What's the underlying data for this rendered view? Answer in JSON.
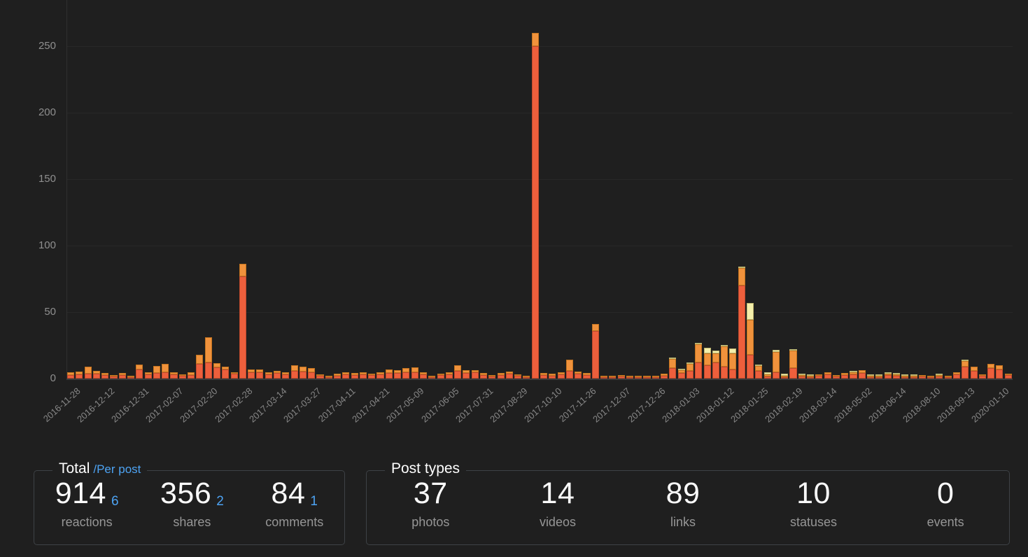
{
  "chart_data": {
    "type": "bar",
    "stacked": true,
    "title": "",
    "xlabel": "",
    "ylabel": "",
    "ylim": [
      0,
      260
    ],
    "yticks": [
      0,
      50,
      100,
      150,
      200,
      250
    ],
    "grid": true,
    "legend_position": "none",
    "x_tick_labels": [
      "2016-11-28",
      "2016-12-12",
      "2016-12-31",
      "2017-02-07",
      "2017-02-20",
      "2017-02-28",
      "2017-03-14",
      "2017-03-27",
      "2017-04-11",
      "2017-04-21",
      "2017-05-09",
      "2017-06-05",
      "2017-07-31",
      "2017-08-29",
      "2017-10-10",
      "2017-11-26",
      "2017-12-07",
      "2017-12-26",
      "2018-01-03",
      "2018-01-12",
      "2018-01-25",
      "2018-02-19",
      "2018-03-14",
      "2018-05-02",
      "2018-06-14",
      "2018-08-10",
      "2018-09-13",
      "2020-01-10"
    ],
    "label_every_n_bars": 4,
    "series": [
      {
        "name": "reactions",
        "color": "#ed5f3c",
        "border_color": "#c04a2e",
        "values": [
          2.5,
          3,
          3.5,
          3.5,
          2.5,
          1.5,
          2.5,
          1,
          7,
          3,
          4,
          5,
          3,
          2,
          2.5,
          11,
          12,
          8.5,
          7,
          3.5,
          77,
          5,
          4.5,
          3,
          4,
          3,
          6,
          5.5,
          5,
          2,
          1,
          2,
          3,
          2.5,
          3,
          2.5,
          3,
          4,
          4,
          4.5,
          4.5,
          3,
          1,
          2.5,
          3,
          6,
          4,
          4.5,
          2.5,
          1.5,
          2.5,
          3.5,
          2,
          1.2,
          250,
          2.5,
          2,
          3,
          6,
          3.5,
          2.5,
          36,
          1,
          0.5,
          1.5,
          1,
          0.5,
          0.3,
          1,
          2,
          8,
          4,
          6,
          12,
          10,
          12,
          9,
          7,
          70,
          18,
          6,
          1.5,
          5,
          1,
          8,
          1.5,
          0.5,
          2,
          3,
          1.5,
          2.5,
          3,
          4,
          1,
          1,
          2.5,
          2,
          1,
          0.3,
          1.5,
          0.8,
          1.5,
          0.4,
          3,
          9,
          6,
          2,
          8,
          7,
          2.5
        ]
      },
      {
        "name": "shares",
        "color": "#f0923c",
        "border_color": "#c37420",
        "values": [
          2,
          2.5,
          5.5,
          2.5,
          1.5,
          0.5,
          1.5,
          0.6,
          3.5,
          1.5,
          5.5,
          6,
          2,
          1,
          2,
          7,
          19,
          3,
          2,
          1,
          9.5,
          2,
          2.5,
          1.5,
          2,
          1.5,
          4,
          3.5,
          3,
          1,
          0.5,
          1.5,
          2,
          1.5,
          2,
          1,
          1.5,
          3,
          2.5,
          3.5,
          4,
          1.5,
          0.5,
          1,
          2,
          4,
          2.5,
          2,
          1.5,
          1,
          1.5,
          2,
          1,
          0.5,
          10,
          1.5,
          1.5,
          1.5,
          8,
          2,
          1.5,
          5,
          0.5,
          0.3,
          1,
          0.5,
          0.3,
          0.2,
          0.5,
          1.5,
          7,
          2.5,
          5,
          14,
          9,
          7,
          15,
          12,
          13,
          26,
          3.5,
          1.5,
          15,
          0.5,
          13,
          1,
          0.3,
          1,
          1.5,
          1,
          1.5,
          2,
          2.5,
          0.5,
          0.5,
          1,
          1,
          0.5,
          0.2,
          1,
          0.4,
          1,
          0.3,
          2,
          4,
          3,
          1,
          3,
          3,
          1
        ]
      },
      {
        "name": "comments",
        "color": "#f4efab",
        "border_color": "#bdb570",
        "values": [
          0,
          0,
          0,
          0,
          0,
          0,
          0,
          0,
          0,
          0,
          0,
          0,
          0,
          0,
          0,
          0,
          0,
          0,
          0,
          0,
          0,
          0,
          0,
          0,
          0,
          0,
          0,
          0,
          0,
          0,
          0,
          0,
          0,
          0,
          0,
          0,
          0,
          0,
          0,
          0,
          0,
          0,
          0,
          0,
          0,
          0,
          0,
          0,
          0,
          0,
          0,
          0,
          0,
          0,
          0,
          0,
          0,
          0,
          0,
          0,
          0,
          0,
          0,
          0,
          0,
          0,
          0,
          0,
          0,
          0,
          1,
          0.5,
          0.5,
          0.5,
          4,
          2,
          1.5,
          3.5,
          1,
          13,
          0.5,
          2,
          1.5,
          1.5,
          1,
          0.5,
          1,
          0,
          0,
          0,
          0,
          0.5,
          0,
          0.5,
          0.5,
          0.5,
          1,
          1,
          1,
          0,
          0,
          0.5,
          0,
          0,
          0.5,
          0,
          0,
          0,
          0,
          0
        ]
      }
    ]
  },
  "panels": {
    "total": {
      "legend_main": "Total",
      "legend_sub": "/Per post",
      "stats": [
        {
          "total": "914",
          "per_post": "6",
          "label": "reactions"
        },
        {
          "total": "356",
          "per_post": "2",
          "label": "shares"
        },
        {
          "total": "84",
          "per_post": "1",
          "label": "comments"
        }
      ]
    },
    "post_types": {
      "legend": "Post types",
      "stats": [
        {
          "value": "37",
          "label": "photos"
        },
        {
          "value": "14",
          "label": "videos"
        },
        {
          "value": "89",
          "label": "links"
        },
        {
          "value": "10",
          "label": "statuses"
        },
        {
          "value": "0",
          "label": "events"
        }
      ]
    }
  },
  "colors": {
    "background": "#1f1f1f",
    "accent_blue": "#4da3f3",
    "bar_red": "#ed5f3c",
    "bar_orange": "#f0923c",
    "bar_yellow": "#f4efab",
    "axis_text": "#8f8f8f"
  }
}
